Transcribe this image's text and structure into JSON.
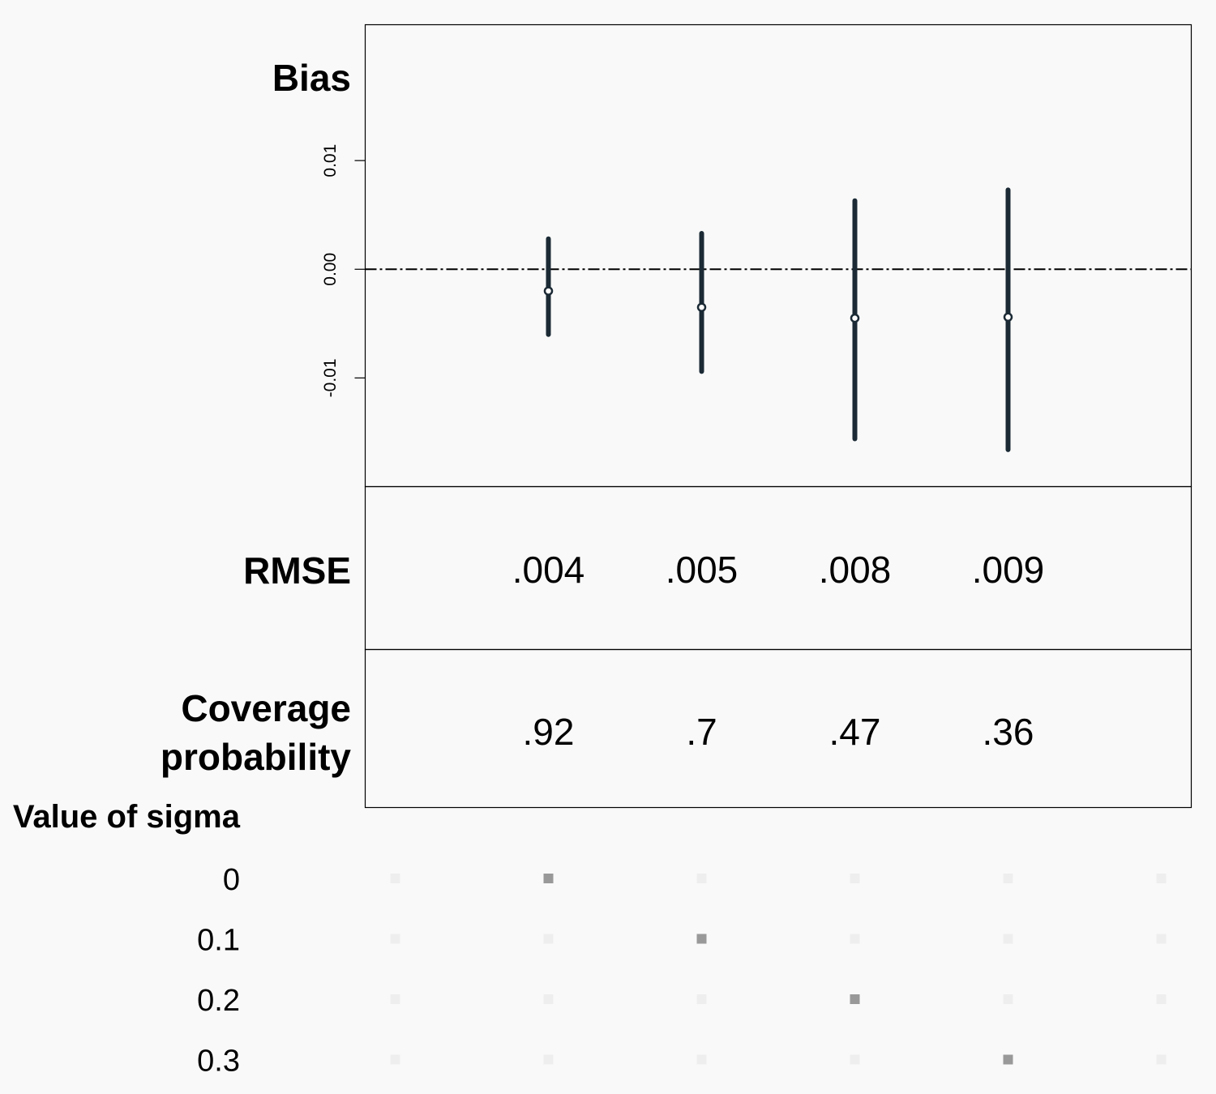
{
  "chart_data": {
    "type": "scatter",
    "categories": [
      "0",
      "0.1",
      "0.2",
      "0.3"
    ],
    "bias": {
      "title": "Bias",
      "ylim": [
        -0.02,
        0.0225
      ],
      "yticks": [
        {
          "value": -0.01,
          "label": "-0.01"
        },
        {
          "value": 0.0,
          "label": "0.00"
        },
        {
          "value": 0.01,
          "label": "0.01"
        }
      ],
      "reference_line": 0,
      "estimates": [
        -0.002,
        -0.0035,
        -0.0045,
        -0.0044
      ],
      "lower": [
        -0.006,
        -0.0094,
        -0.0156,
        -0.0166
      ],
      "upper": [
        0.0028,
        0.0033,
        0.0063,
        0.0073
      ],
      "color": "#1b2a35"
    },
    "rmse": {
      "title": "RMSE",
      "values": [
        0.004,
        0.005,
        0.008,
        0.009
      ],
      "labels": [
        ".004",
        ".005",
        ".008",
        ".009"
      ]
    },
    "coverage": {
      "title": [
        "Coverage",
        "probability"
      ],
      "values": [
        0.92,
        0.7,
        0.47,
        0.36
      ],
      "labels": [
        ".92",
        ".7",
        ".47",
        ".36"
      ]
    },
    "design": {
      "title": "Value of sigma",
      "levels": [
        "0",
        "0.1",
        "0.2",
        "0.3"
      ],
      "active_color": "#999999",
      "inactive_color": "#eeeeee"
    },
    "grid": false
  }
}
